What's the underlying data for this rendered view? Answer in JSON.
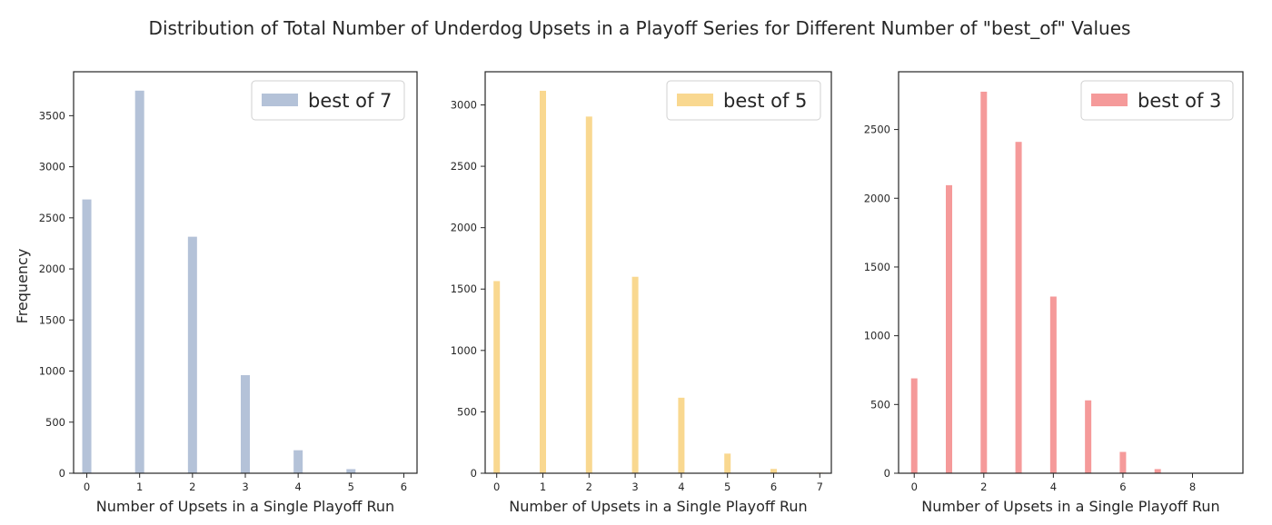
{
  "title": "Distribution of Total Number of Underdog Upsets in a Playoff Series for Different Number of \"best_of\" Values",
  "chart_data": [
    {
      "type": "bar",
      "series": [
        {
          "name": "best of 7",
          "color": "#b4c2d8",
          "x": [
            0,
            1,
            2,
            3,
            4,
            5,
            6
          ],
          "values": [
            2680,
            3745,
            2315,
            960,
            225,
            40,
            5
          ]
        }
      ],
      "xlabel": "Number of Upsets in a Single Playoff Run",
      "ylabel": "Frequency",
      "xticks": [
        "0",
        "1",
        "2",
        "3",
        "4",
        "5",
        "6"
      ],
      "yticks": [
        "0",
        "500",
        "1000",
        "1500",
        "2000",
        "2500",
        "3000",
        "3500"
      ],
      "xlim": [
        -0.25,
        6.25
      ],
      "ylim": [
        0,
        3930
      ],
      "legend_position": "top-right"
    },
    {
      "type": "bar",
      "series": [
        {
          "name": "best of 5",
          "color": "#f9d890",
          "x": [
            0,
            1,
            2,
            3,
            4,
            5,
            6,
            7
          ],
          "values": [
            1565,
            3115,
            2905,
            1600,
            615,
            160,
            35,
            5
          ]
        }
      ],
      "xlabel": "Number of Upsets in a Single Playoff Run",
      "ylabel": "",
      "xticks": [
        "0",
        "1",
        "2",
        "3",
        "4",
        "5",
        "6",
        "7"
      ],
      "yticks": [
        "0",
        "500",
        "1000",
        "1500",
        "2000",
        "2500",
        "3000"
      ],
      "xlim": [
        -0.25,
        7.25
      ],
      "ylim": [
        0,
        3270
      ],
      "legend_position": "top-right"
    },
    {
      "type": "bar",
      "series": [
        {
          "name": "best of 3",
          "color": "#f59a9a",
          "x": [
            0,
            1,
            2,
            3,
            4,
            5,
            6,
            7,
            8
          ],
          "values": [
            690,
            2095,
            2775,
            2410,
            1285,
            530,
            155,
            30,
            3
          ]
        }
      ],
      "xlabel": "Number of Upsets in a Single Playoff Run",
      "ylabel": "",
      "xticks": [
        "0",
        "2",
        "4",
        "6",
        "8"
      ],
      "yticks": [
        "0",
        "500",
        "1000",
        "1500",
        "2000",
        "2500"
      ],
      "xlim": [
        -0.45,
        9.45
      ],
      "ylim": [
        0,
        2920
      ],
      "legend_position": "top-right"
    }
  ]
}
